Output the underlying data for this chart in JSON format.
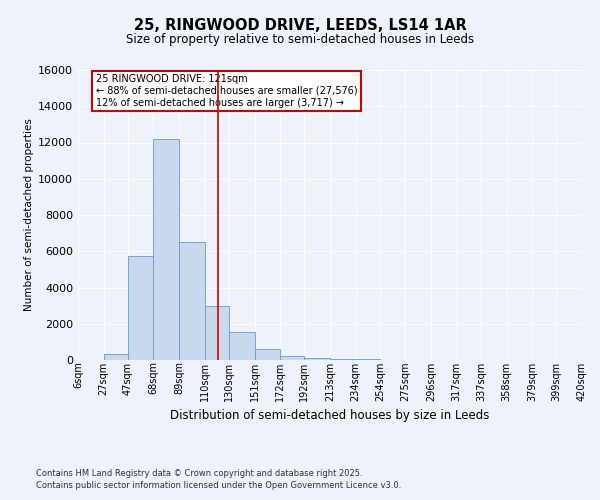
{
  "title": "25, RINGWOOD DRIVE, LEEDS, LS14 1AR",
  "subtitle": "Size of property relative to semi-detached houses in Leeds",
  "xlabel": "Distribution of semi-detached houses by size in Leeds",
  "ylabel": "Number of semi-detached properties",
  "footnote1": "Contains HM Land Registry data © Crown copyright and database right 2025.",
  "footnote2": "Contains public sector information licensed under the Open Government Licence v3.0.",
  "annotation_title": "25 RINGWOOD DRIVE: 121sqm",
  "annotation_line1": "← 88% of semi-detached houses are smaller (27,576)",
  "annotation_line2": "12% of semi-detached houses are larger (3,717) →",
  "property_size": 121,
  "bar_left_edges": [
    6,
    27,
    47,
    68,
    89,
    110,
    130,
    151,
    172,
    192,
    213,
    234,
    254,
    275,
    296,
    317,
    337,
    358,
    379,
    399
  ],
  "bar_widths": [
    21,
    20,
    21,
    21,
    21,
    20,
    21,
    21,
    20,
    21,
    21,
    20,
    21,
    21,
    21,
    20,
    20,
    21,
    20,
    21
  ],
  "bar_heights": [
    0,
    350,
    5750,
    12200,
    6500,
    3000,
    1550,
    600,
    200,
    100,
    50,
    30,
    20,
    15,
    10,
    5,
    3,
    2,
    1,
    0
  ],
  "bar_color": "#c8d8ed",
  "bar_edgecolor": "#6699cc",
  "vline_color": "#cc0000",
  "annotation_box_edgecolor": "#cc0000",
  "annotation_box_facecolor": "#ffffff",
  "bg_color": "#eef2fa",
  "ylim": [
    0,
    16000
  ],
  "yticks": [
    0,
    2000,
    4000,
    6000,
    8000,
    10000,
    12000,
    14000,
    16000
  ],
  "xlim_left": 6,
  "xlim_right": 420,
  "categories": [
    "6sqm",
    "27sqm",
    "47sqm",
    "68sqm",
    "89sqm",
    "110sqm",
    "130sqm",
    "151sqm",
    "172sqm",
    "192sqm",
    "213sqm",
    "234sqm",
    "254sqm",
    "275sqm",
    "296sqm",
    "317sqm",
    "337sqm",
    "358sqm",
    "379sqm",
    "399sqm",
    "420sqm"
  ]
}
